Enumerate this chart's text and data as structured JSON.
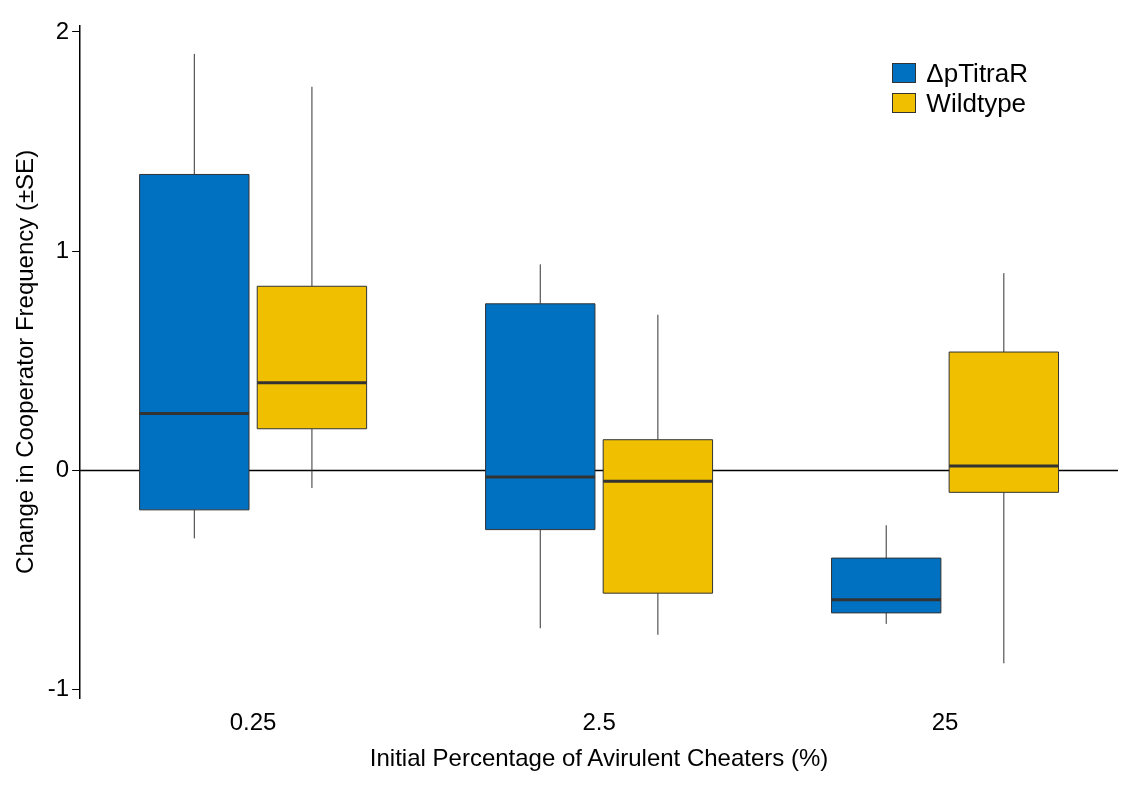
{
  "chart_data": {
    "type": "box",
    "xlabel": "Initial Percentage of Avirulent Cheaters (%)",
    "ylabel": "Change in Cooperator Frequency (±SE)",
    "categories": [
      "0.25",
      "2.5",
      "25"
    ],
    "series": [
      {
        "name": "ΔpTitraR",
        "color": "#0070c0",
        "boxes": [
          {
            "low": -0.31,
            "q1": -0.18,
            "median": 0.26,
            "q3": 1.35,
            "high": 1.9
          },
          {
            "low": -0.72,
            "q1": -0.27,
            "median": -0.03,
            "q3": 0.76,
            "high": 0.94
          },
          {
            "low": -0.7,
            "q1": -0.65,
            "median": -0.59,
            "q3": -0.4,
            "high": -0.25
          }
        ]
      },
      {
        "name": "Wildtype",
        "color": "#f0c000",
        "boxes": [
          {
            "low": -0.08,
            "q1": 0.19,
            "median": 0.4,
            "q3": 0.84,
            "high": 1.75
          },
          {
            "low": -0.75,
            "q1": -0.56,
            "median": -0.05,
            "q3": 0.14,
            "high": 0.71
          },
          {
            "low": -0.88,
            "q1": -0.1,
            "median": 0.02,
            "q3": 0.54,
            "high": 0.9
          }
        ]
      }
    ],
    "ylim": [
      -1.04,
      2.03
    ],
    "yticks": [
      -1,
      0,
      1,
      2
    ],
    "ref_lines": [
      {
        "axis": "y",
        "value": 0,
        "color": "#000000"
      }
    ],
    "grid": false,
    "legend": "top right"
  }
}
